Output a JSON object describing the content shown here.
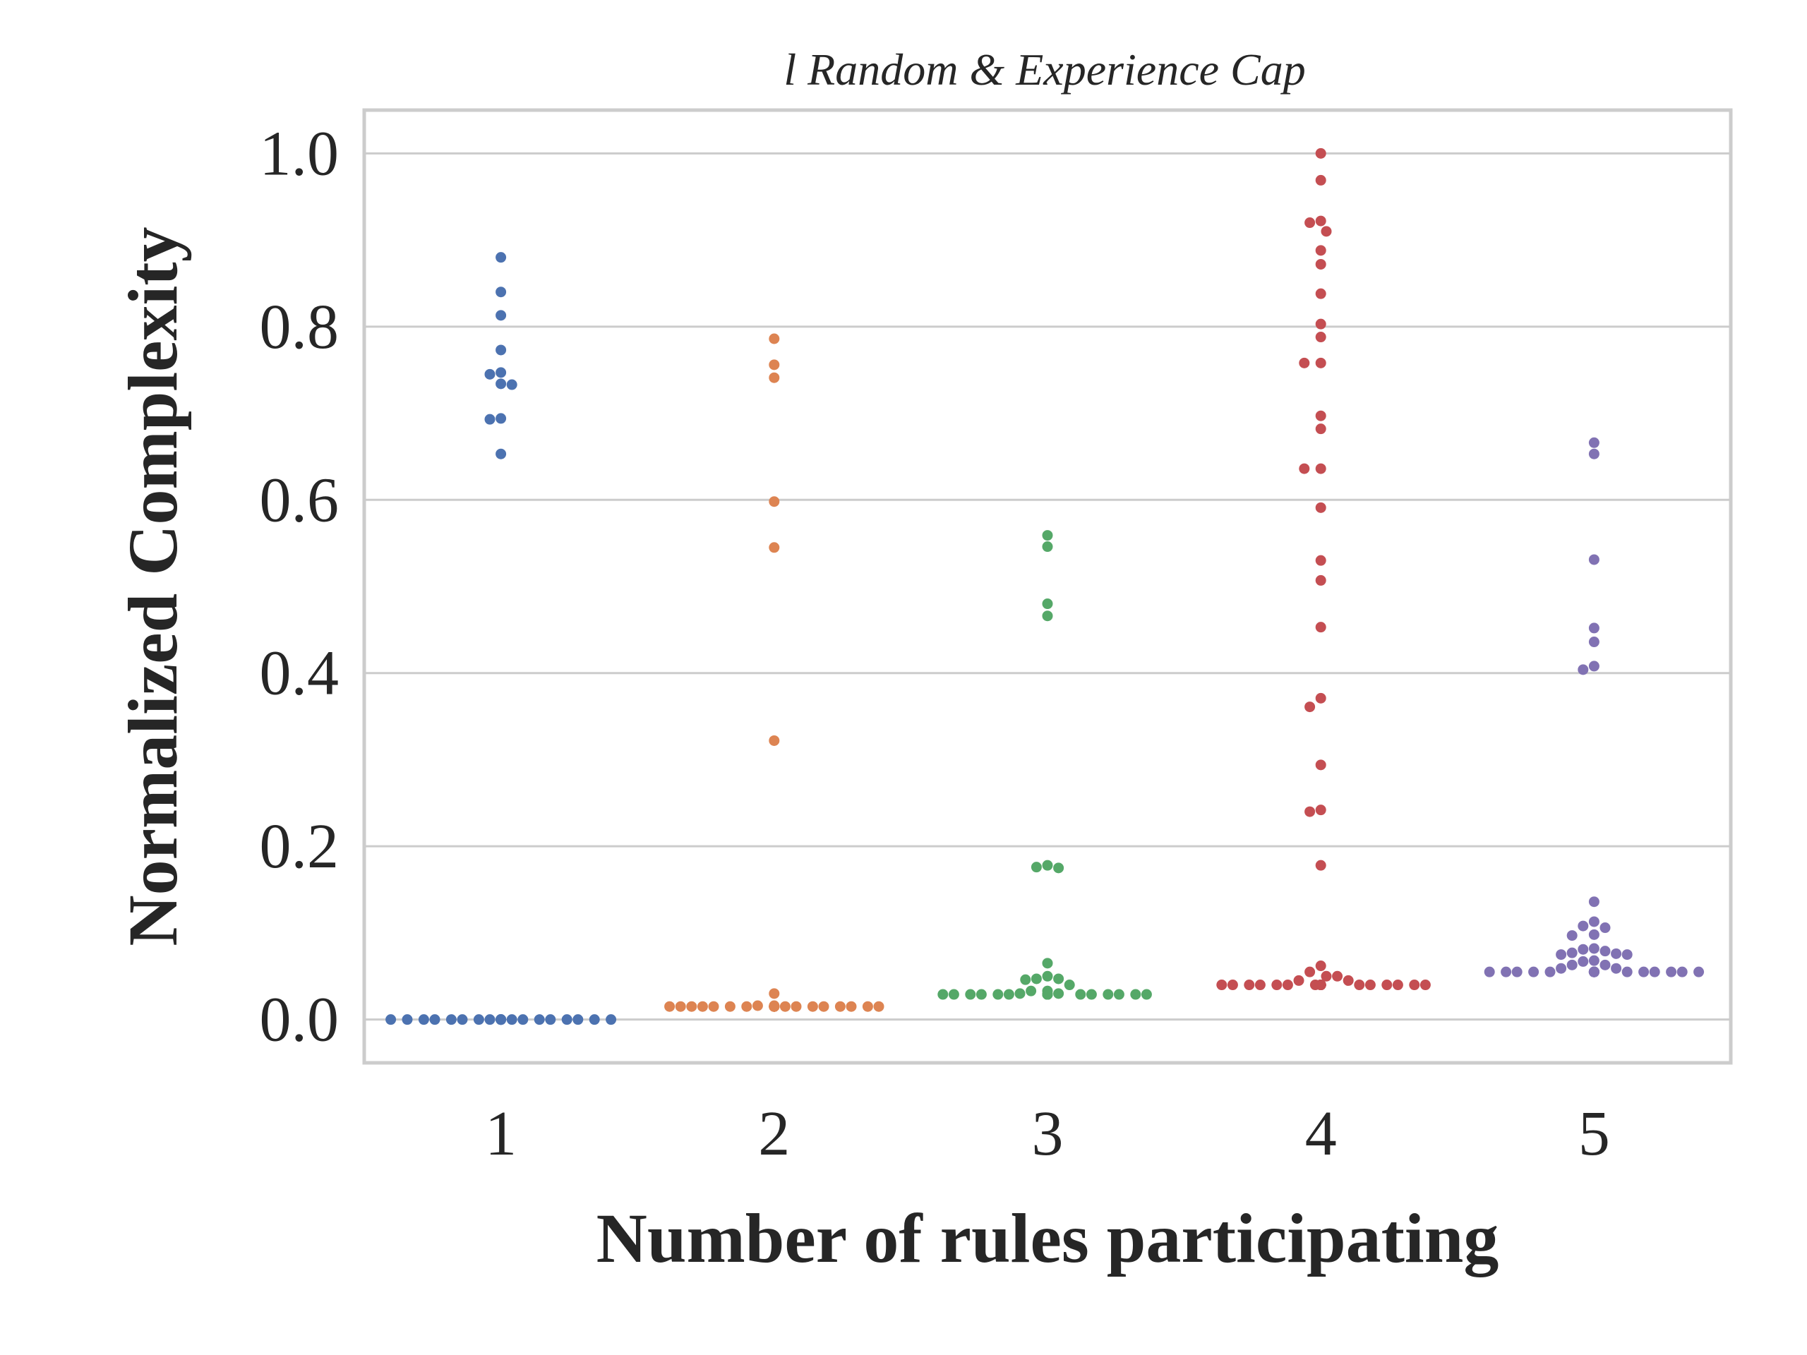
{
  "chart_data": {
    "type": "scatter",
    "subtype": "swarm",
    "title": "l Random & Experience Cap",
    "xlabel": "Number of rules participating",
    "ylabel": "Normalized Complexity",
    "categories": [
      "1",
      "2",
      "3",
      "4",
      "5"
    ],
    "yticks": [
      "0.0",
      "0.2",
      "0.4",
      "0.6",
      "0.8",
      "1.0"
    ],
    "ylim": [
      -0.05,
      1.05
    ],
    "grid": "y",
    "colors": [
      "#4c72b0",
      "#dd8452",
      "#55a868",
      "#c44e52",
      "#8172b3"
    ],
    "series": [
      {
        "category": "1",
        "values": [
          0.88,
          0.84,
          0.813,
          0.773,
          0.747,
          0.745,
          0.734,
          0.733,
          0.694,
          0.693,
          0.653,
          0,
          0,
          0,
          0,
          0,
          0,
          0,
          0,
          0,
          0,
          0,
          0,
          0,
          0,
          0,
          0,
          0,
          0,
          0,
          0,
          0,
          0,
          0,
          0
        ]
      },
      {
        "category": "2",
        "values": [
          0.786,
          0.756,
          0.741,
          0.598,
          0.545,
          0.322,
          0.03,
          0.016,
          0.015,
          0.015,
          0.015,
          0.015,
          0.015,
          0.015,
          0.015,
          0.015,
          0.015,
          0.015,
          0.015,
          0.015,
          0.015,
          0.015,
          0.015,
          0.015,
          0.015,
          0.015,
          0.015,
          0.015,
          0.015,
          0.015,
          0.015,
          0.016
        ]
      },
      {
        "category": "3",
        "values": [
          0.559,
          0.546,
          0.48,
          0.466,
          0.178,
          0.176,
          0.175,
          0.065,
          0.05,
          0.047,
          0.047,
          0.046,
          0.04,
          0.033,
          0.03,
          0.029,
          0.029,
          0.029,
          0.029,
          0.029,
          0.029,
          0.029,
          0.029,
          0.029,
          0.029,
          0.029,
          0.029,
          0.029,
          0.029,
          0.029,
          0.029,
          0.029,
          0.029,
          0.029,
          0.029,
          0.029,
          0.03,
          0.033
        ]
      },
      {
        "category": "4",
        "values": [
          1.0,
          0.969,
          0.922,
          0.92,
          0.91,
          0.888,
          0.872,
          0.838,
          0.803,
          0.788,
          0.758,
          0.758,
          0.697,
          0.682,
          0.636,
          0.636,
          0.591,
          0.53,
          0.507,
          0.453,
          0.371,
          0.361,
          0.294,
          0.242,
          0.24,
          0.178,
          0.062,
          0.055,
          0.05,
          0.045,
          0.04,
          0.04,
          0.04,
          0.04,
          0.04,
          0.04,
          0.04,
          0.04,
          0.04,
          0.04,
          0.04,
          0.04,
          0.04,
          0.04,
          0.04,
          0.04,
          0.04,
          0.04,
          0.04,
          0.04,
          0.045,
          0.05
        ]
      },
      {
        "category": "5",
        "values": [
          0.666,
          0.653,
          0.531,
          0.452,
          0.436,
          0.408,
          0.404,
          0.136,
          0.113,
          0.108,
          0.106,
          0.098,
          0.097,
          0.082,
          0.081,
          0.079,
          0.077,
          0.076,
          0.075,
          0.075,
          0.068,
          0.067,
          0.063,
          0.059,
          0.055,
          0.055,
          0.055,
          0.055,
          0.055,
          0.055,
          0.055,
          0.055,
          0.055,
          0.055,
          0.055,
          0.055,
          0.055,
          0.055,
          0.055,
          0.055,
          0.055,
          0.055,
          0.055,
          0.055,
          0.055,
          0.055,
          0.055,
          0.055,
          0.055,
          0.059,
          0.063
        ]
      }
    ]
  }
}
